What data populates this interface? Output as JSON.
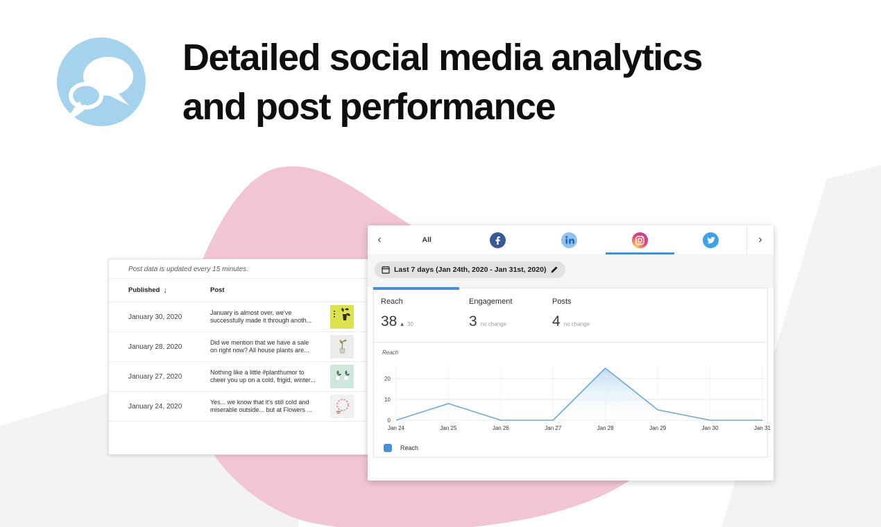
{
  "colors": {
    "accent_blue": "#4a90d2",
    "chart_line": "#6fa8d6",
    "chart_fill": "#cde6f6",
    "pink_blob": "#f2c5d4",
    "gray_shape": "#f3f3f4",
    "hero_icon_blue": "#a5d3ee",
    "facebook_blue": "#3b5998",
    "twitter_blue": "#3da2ec"
  },
  "header": {
    "title_line1": "Detailed social media analytics",
    "title_line2": "and post performance"
  },
  "posts_card": {
    "note": "Post data is updated every 15 minutes.",
    "col_published": "Published",
    "sort_arrow": "↓",
    "col_post": "Post",
    "rows": [
      {
        "date": "January 30, 2020",
        "line1": "January is almost over, we've",
        "line2": "successfully made it through anoth...",
        "thumb_color": "#dbe24e"
      },
      {
        "date": "January 28, 2020",
        "line1": "Did we mention that we have a sale",
        "line2": "on right now? All house plants are...",
        "thumb_color": "#ececea"
      },
      {
        "date": "January 27, 2020",
        "line1": "Nothing like a little #planthumor to",
        "line2": "cheer you up on a cold, frigid, winter...",
        "thumb_color": "#cfe7dd"
      },
      {
        "date": "January 24, 2020",
        "line1": "Yes... we know that it's still cold and",
        "line2": "miserable outside... but at Flowers ...",
        "thumb_color": "#f2f0f1"
      }
    ]
  },
  "analytics_card": {
    "prev": "‹",
    "next": "›",
    "tab_all": "All",
    "active_tab": "instagram",
    "date_range": "Last 7 days (Jan 24th, 2020 - Jan 31st, 2020)",
    "metrics": [
      {
        "label": "Reach",
        "value": "38",
        "delta_icon": "▴",
        "delta": "30"
      },
      {
        "label": "Engagement",
        "value": "3",
        "delta_icon": "",
        "delta": "no change"
      },
      {
        "label": "Posts",
        "value": "4",
        "delta_icon": "",
        "delta": "no change"
      }
    ],
    "chart_title": "Reach",
    "legend_label": "Reach"
  },
  "chart_data": {
    "type": "area",
    "title": "Reach",
    "x": [
      "Jan 24",
      "Jan 25",
      "Jan 26",
      "Jan 27",
      "Jan 28",
      "Jan 29",
      "Jan 30",
      "Jan 31"
    ],
    "series": [
      {
        "name": "Reach",
        "values": [
          0,
          8,
          0,
          0,
          25,
          5,
          0,
          0
        ]
      }
    ],
    "xlabel": "",
    "ylabel": "",
    "ylim": [
      0,
      30
    ],
    "yticks": [
      0,
      10,
      20
    ],
    "grid": true,
    "legend_position": "bottom"
  }
}
